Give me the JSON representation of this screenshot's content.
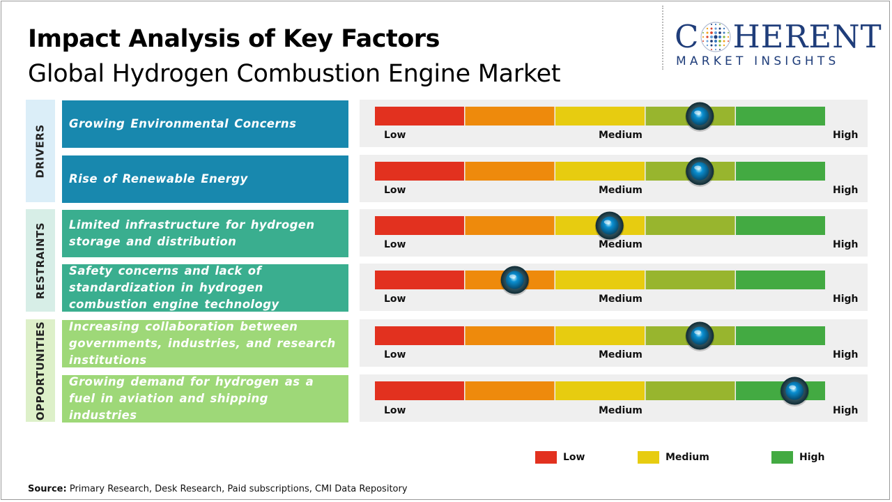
{
  "header": {
    "title": "Impact Analysis of Key Factors",
    "subtitle": "Global Hydrogen Combustion Engine Market"
  },
  "logo": {
    "name_left": "C",
    "name_right": "HERENT",
    "tagline": "MARKET INSIGHTS"
  },
  "colors": {
    "drivers_label_bg": "#dbeef8",
    "drivers_box": "#1888ae",
    "restraints_label_bg": "#d7eee7",
    "restraints_box": "#3aae8f",
    "opportunities_label_bg": "#ddf0c9",
    "opportunities_box": "#9ed878",
    "scale": [
      "#e2311f",
      "#ee8a0c",
      "#e7cc10",
      "#98b52e",
      "#43aa42"
    ],
    "marker": "#0a8fd1"
  },
  "chart_data": {
    "type": "gauge",
    "scale_labels": {
      "low": "Low",
      "medium": "Medium",
      "high": "High"
    },
    "scale_range": [
      0,
      5
    ],
    "groups": [
      {
        "name": "DRIVERS",
        "factors": [
          {
            "label": "Growing Environmental Concerns",
            "impact": 3.6
          },
          {
            "label": "Rise of Renewable Energy",
            "impact": 3.6
          }
        ]
      },
      {
        "name": "RESTRAINTS",
        "factors": [
          {
            "label": "Limited infrastructure for hydrogen storage and distribution",
            "impact": 2.6
          },
          {
            "label": "Safety concerns and lack of standardization in hydrogen combustion engine technology",
            "impact": 1.55
          }
        ]
      },
      {
        "name": "OPPORTUNITIES",
        "factors": [
          {
            "label": "Increasing collaboration between governments, industries, and research institutions",
            "impact": 3.6
          },
          {
            "label": "Growing demand for hydrogen as a fuel in aviation and shipping industries",
            "impact": 4.65
          }
        ]
      }
    ],
    "legend": [
      {
        "label": "Low",
        "color": "#e2311f"
      },
      {
        "label": "Medium",
        "color": "#e7cc10"
      },
      {
        "label": "High",
        "color": "#43aa42"
      }
    ]
  },
  "source": {
    "label": "Source:",
    "text": "Primary Research, Desk Research, Paid subscriptions, CMI Data Repository"
  }
}
